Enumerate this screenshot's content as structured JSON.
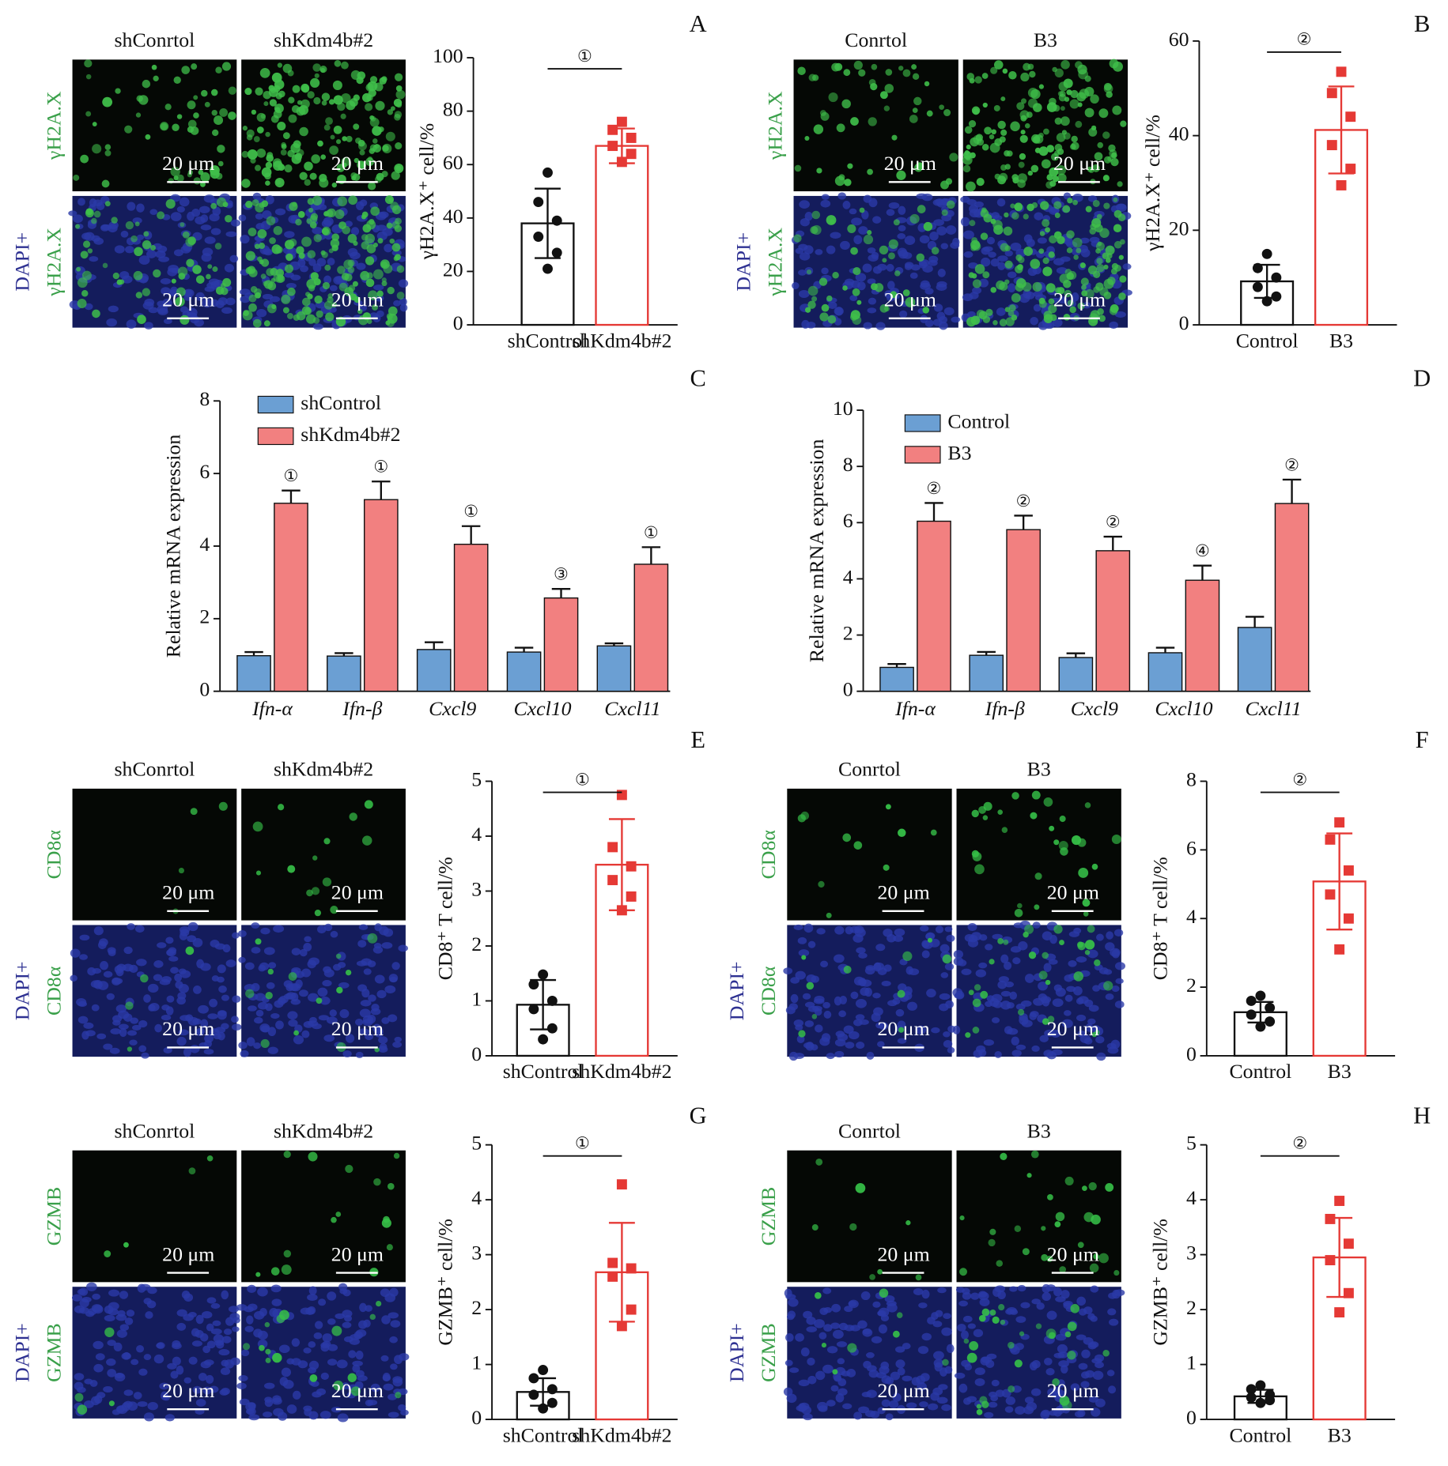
{
  "chart_data": [
    {
      "type": "bar",
      "panel": "A",
      "ylabel": "γH2A.X⁺ cell/%",
      "categories": [
        "shControl",
        "shKdm4b#2"
      ],
      "colors": [
        "#111111",
        "#e53935"
      ],
      "values": [
        38,
        67
      ],
      "errors": [
        13,
        6.5
      ],
      "points": [
        [
          57,
          46,
          39,
          33,
          27,
          21
        ],
        [
          76,
          73,
          70,
          67,
          64,
          61
        ]
      ],
      "annotation": "①",
      "ylim": [
        0,
        100
      ],
      "yticks": [
        0,
        20,
        40,
        60,
        80,
        100
      ]
    },
    {
      "type": "bar",
      "panel": "B",
      "ylabel": "γH2A.X⁺ cell/%",
      "categories": [
        "Control",
        "B3"
      ],
      "colors": [
        "#111111",
        "#e53935"
      ],
      "values": [
        9.2,
        41.2
      ],
      "errors": [
        3.5,
        9.2
      ],
      "points": [
        [
          15,
          12,
          10,
          8,
          6,
          5
        ],
        [
          53.5,
          49,
          44,
          38,
          33,
          29.5
        ]
      ],
      "annotation": "②",
      "ylim": [
        0,
        60
      ],
      "yticks": [
        0,
        20,
        40,
        60
      ]
    },
    {
      "type": "grouped_bar",
      "panel": "C",
      "ylabel": "Relative mRNA expression",
      "categories": [
        "Ifn-α",
        "Ifn-β",
        "Cxcl9",
        "Cxcl10",
        "Cxcl11"
      ],
      "series": [
        {
          "name": "shControl",
          "color": "#6b9fd3",
          "values": [
            0.98,
            0.97,
            1.15,
            1.08,
            1.25
          ],
          "errors": [
            0.1,
            0.08,
            0.2,
            0.12,
            0.07
          ]
        },
        {
          "name": "shKdm4b#2",
          "color": "#f28080",
          "values": [
            5.18,
            5.28,
            4.05,
            2.57,
            3.5
          ],
          "errors": [
            0.35,
            0.5,
            0.5,
            0.25,
            0.47
          ]
        }
      ],
      "annotations": [
        "①",
        "①",
        "①",
        "③",
        "①"
      ],
      "ylim": [
        0,
        8
      ],
      "yticks": [
        0,
        2,
        4,
        6,
        8
      ]
    },
    {
      "type": "grouped_bar",
      "panel": "D",
      "ylabel": "Relative mRNA expression",
      "categories": [
        "Ifn-α",
        "Ifn-β",
        "Cxcl9",
        "Cxcl10",
        "Cxcl11"
      ],
      "series": [
        {
          "name": "Control",
          "color": "#6b9fd3",
          "values": [
            0.85,
            1.28,
            1.2,
            1.37,
            2.27
          ],
          "errors": [
            0.12,
            0.12,
            0.15,
            0.18,
            0.38
          ]
        },
        {
          "name": "B3",
          "color": "#f28080",
          "values": [
            6.05,
            5.75,
            5.0,
            3.95,
            6.68
          ],
          "errors": [
            0.65,
            0.5,
            0.5,
            0.52,
            0.85
          ]
        }
      ],
      "annotations": [
        "②",
        "②",
        "②",
        "④",
        "②"
      ],
      "ylim": [
        0,
        10
      ],
      "yticks": [
        0,
        2,
        4,
        6,
        8,
        10
      ]
    },
    {
      "type": "bar",
      "panel": "E",
      "ylabel": "CD8⁺ T cell/%",
      "categories": [
        "shControl",
        "shKdm4b#2"
      ],
      "colors": [
        "#111111",
        "#e53935"
      ],
      "values": [
        0.93,
        3.48
      ],
      "errors": [
        0.45,
        0.83
      ],
      "points": [
        [
          1.48,
          1.3,
          1.0,
          0.85,
          0.5,
          0.3
        ],
        [
          4.75,
          3.8,
          3.45,
          3.2,
          2.9,
          2.65
        ]
      ],
      "annotation": "①",
      "ylim": [
        0,
        5
      ],
      "yticks": [
        0,
        1,
        2,
        3,
        4,
        5
      ]
    },
    {
      "type": "bar",
      "panel": "F",
      "ylabel": "CD8⁺ T cell/%",
      "categories": [
        "Control",
        "B3"
      ],
      "colors": [
        "#111111",
        "#e53935"
      ],
      "values": [
        1.27,
        5.08
      ],
      "errors": [
        0.3,
        1.4
      ],
      "points": [
        [
          1.75,
          1.6,
          1.4,
          1.2,
          1.0,
          0.85
        ],
        [
          6.8,
          6.3,
          5.4,
          4.7,
          4.0,
          3.1
        ]
      ],
      "annotation": "②",
      "ylim": [
        0,
        8
      ],
      "yticks": [
        0,
        2,
        4,
        6,
        8
      ]
    },
    {
      "type": "bar",
      "panel": "G",
      "ylabel": "GZMB⁺ cell/%",
      "categories": [
        "shControl",
        "shKdm4b#2"
      ],
      "colors": [
        "#111111",
        "#e53935"
      ],
      "values": [
        0.5,
        2.68
      ],
      "errors": [
        0.25,
        0.9
      ],
      "points": [
        [
          0.9,
          0.75,
          0.55,
          0.45,
          0.3,
          0.2
        ],
        [
          4.28,
          2.85,
          2.75,
          2.6,
          2.0,
          1.7
        ]
      ],
      "annotation": "①",
      "ylim": [
        0,
        5
      ],
      "yticks": [
        0,
        1,
        2,
        3,
        4,
        5
      ]
    },
    {
      "type": "bar",
      "panel": "H",
      "ylabel": "GZMB⁺ cell/%",
      "categories": [
        "Control",
        "B3"
      ],
      "colors": [
        "#111111",
        "#e53935"
      ],
      "values": [
        0.42,
        2.95
      ],
      "errors": [
        0.12,
        0.72
      ],
      "points": [
        [
          0.62,
          0.55,
          0.45,
          0.4,
          0.35,
          0.3
        ],
        [
          3.98,
          3.65,
          3.2,
          2.9,
          2.3,
          1.95
        ]
      ],
      "annotation": "②",
      "ylim": [
        0,
        5
      ],
      "yticks": [
        0,
        1,
        2,
        3,
        4,
        5
      ]
    }
  ],
  "micrographs": [
    {
      "columns": [
        "shConrtol",
        "shKdm4b#2"
      ],
      "rows": [
        [
          "γH2A.X"
        ],
        [
          "DAPI+",
          "γH2A.X"
        ]
      ],
      "scale_bar": "20 μm"
    },
    {
      "columns": [
        "Conrtol",
        "B3"
      ],
      "rows": [
        [
          "γH2A.X"
        ],
        [
          "DAPI+",
          "γH2A.X"
        ]
      ],
      "scale_bar": "20 μm"
    },
    {
      "columns": [
        "shConrtol",
        "shKdm4b#2"
      ],
      "rows": [
        [
          "CD8α"
        ],
        [
          "DAPI+",
          "CD8α"
        ]
      ],
      "scale_bar": "20 μm"
    },
    {
      "columns": [
        "Conrtol",
        "B3"
      ],
      "rows": [
        [
          "CD8α"
        ],
        [
          "DAPI+",
          "CD8α"
        ]
      ],
      "scale_bar": "20 μm"
    },
    {
      "columns": [
        "shConrtol",
        "shKdm4b#2"
      ],
      "rows": [
        [
          "GZMB"
        ],
        [
          "DAPI+",
          "GZMB"
        ]
      ],
      "scale_bar": "20 μm"
    },
    {
      "columns": [
        "Conrtol",
        "B3"
      ],
      "rows": [
        [
          "GZMB"
        ],
        [
          "DAPI+",
          "GZMB"
        ]
      ],
      "scale_bar": "20 μm"
    }
  ]
}
